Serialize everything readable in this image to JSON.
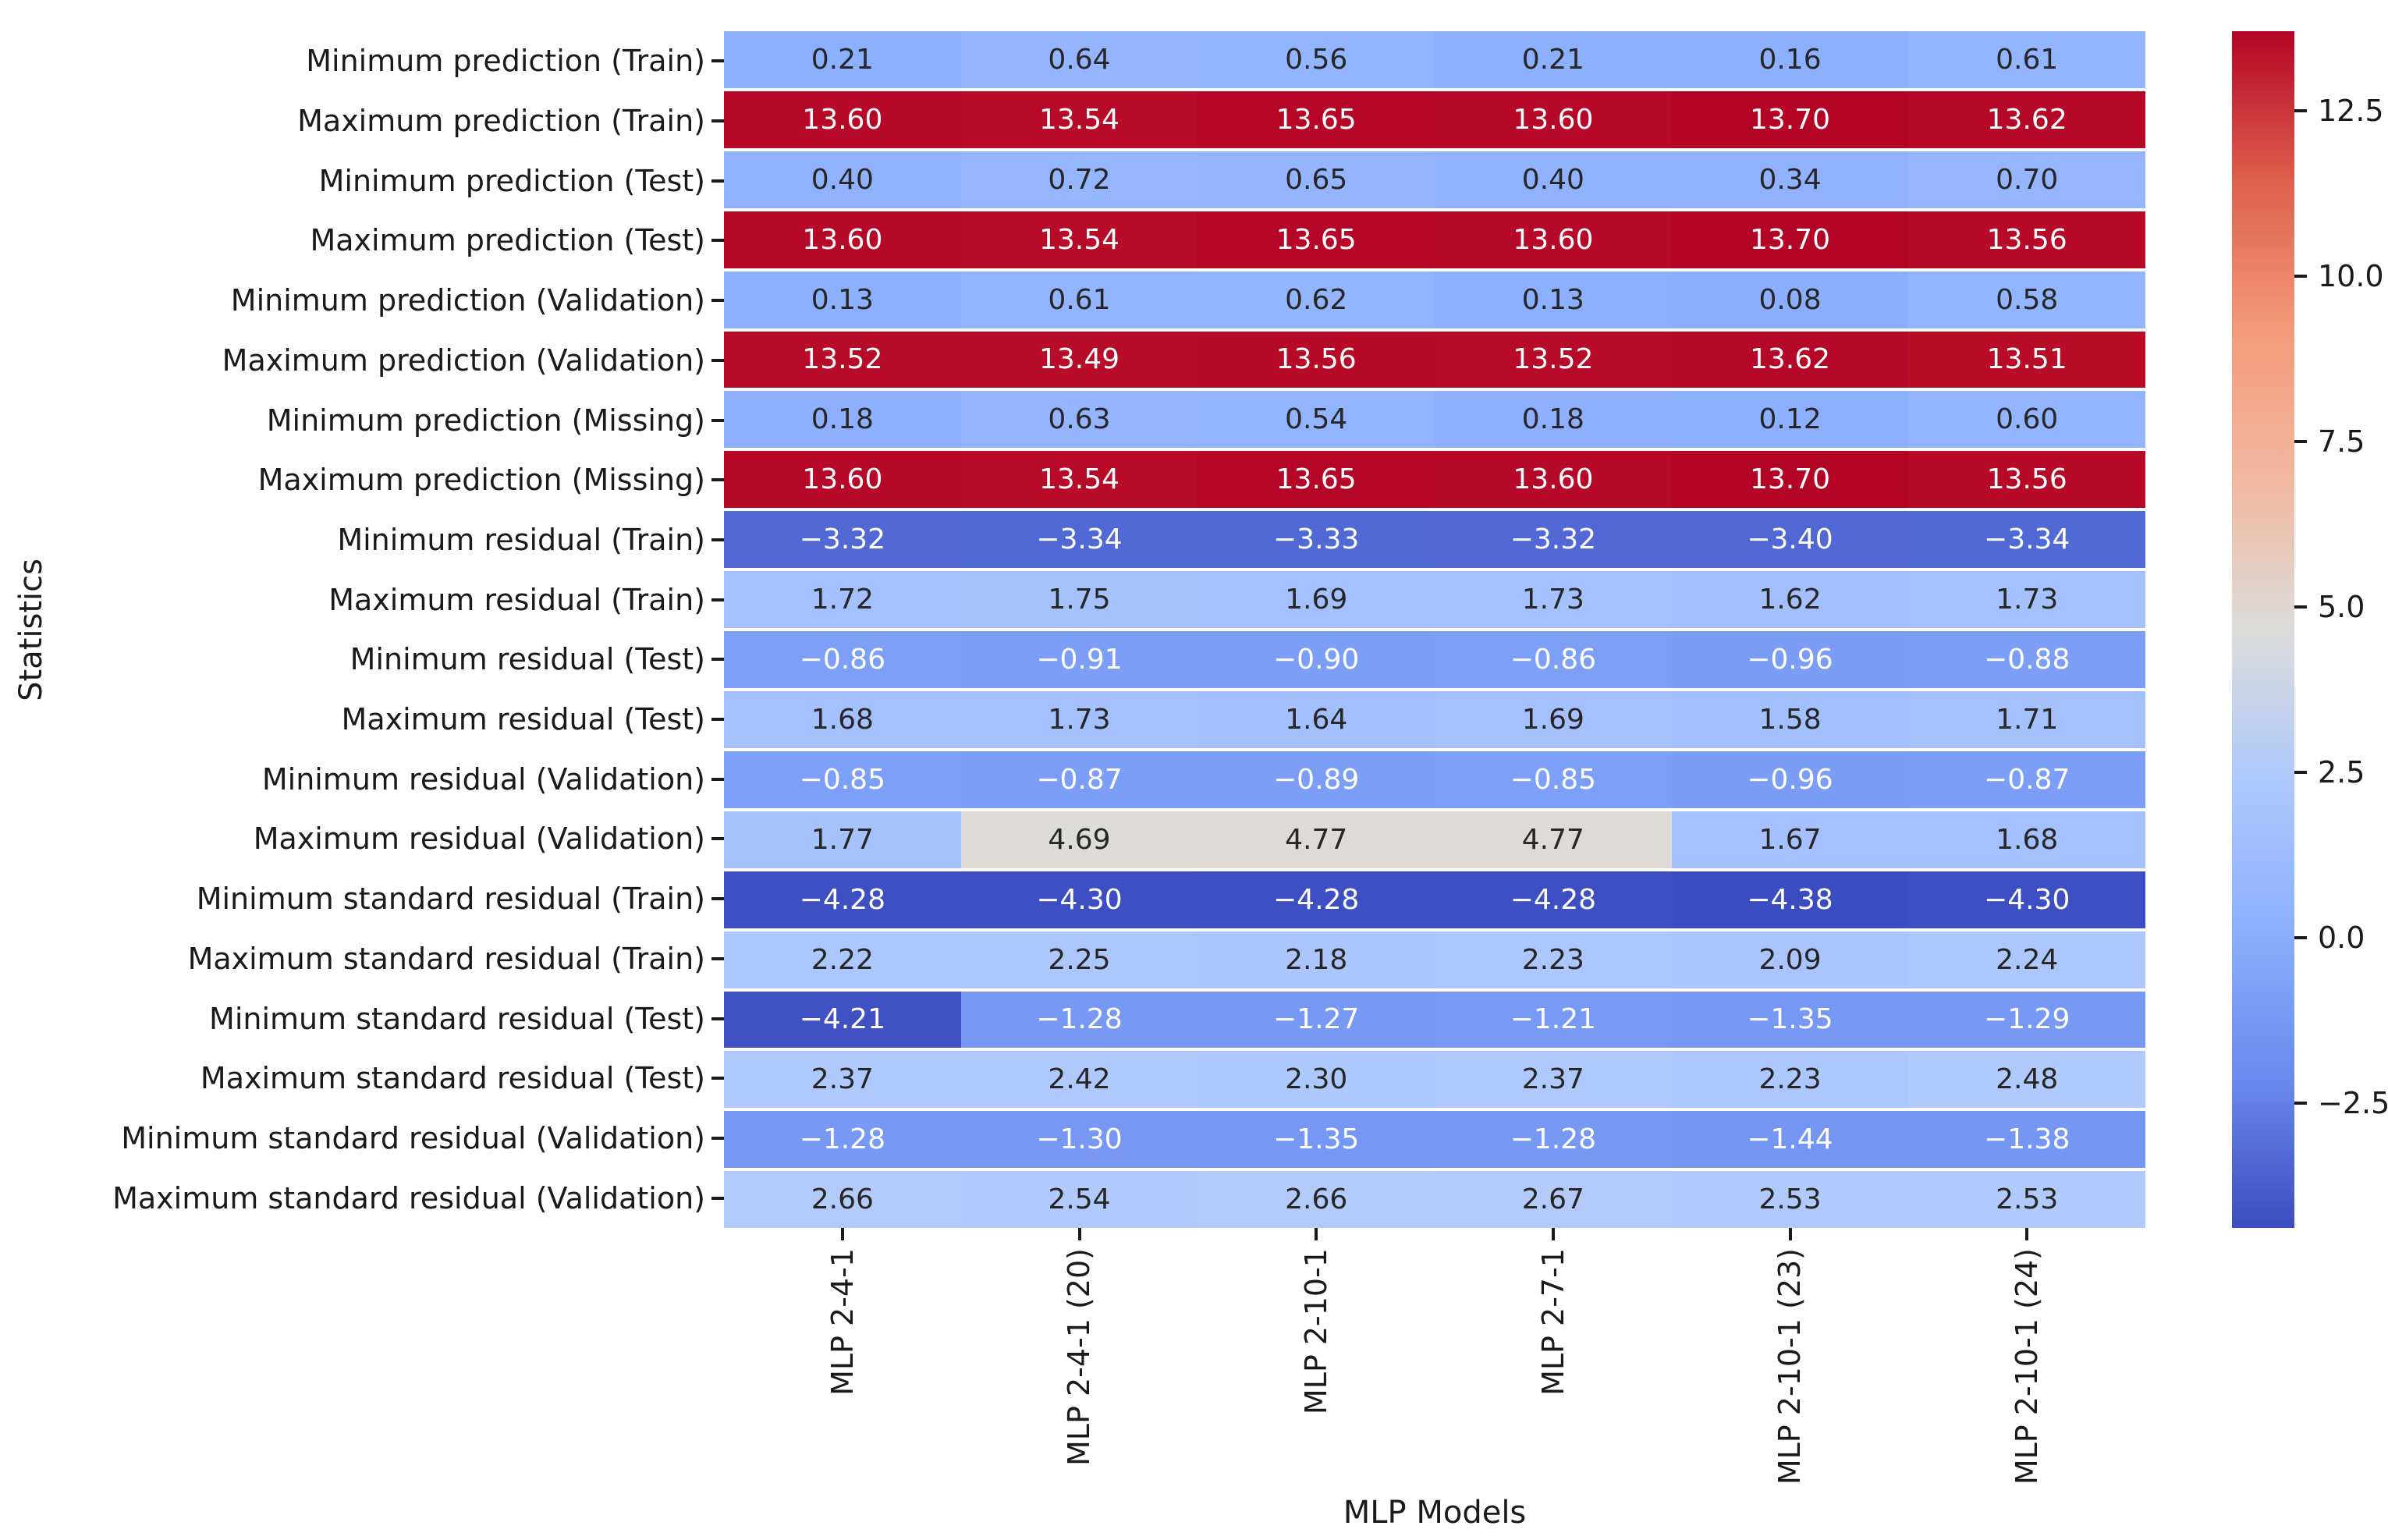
{
  "chart_data": {
    "type": "heatmap",
    "title": "",
    "xlabel": "MLP Models",
    "ylabel": "Statistics",
    "colormap": "coolwarm",
    "vmin": -4.38,
    "vmax": 13.7,
    "grid": false,
    "legend_position": "right-colorbar",
    "annotation_format": ".2f",
    "columns": [
      "MLP 2-4-1",
      "MLP 2-4-1 (20)",
      "MLP 2-10-1",
      "MLP 2-7-1",
      "MLP 2-10-1 (23)",
      "MLP 2-10-1 (24)"
    ],
    "rows": [
      "Minimum prediction (Train)",
      "Maximum prediction (Train)",
      "Minimum prediction (Test)",
      "Maximum prediction (Test)",
      "Minimum prediction (Validation)",
      "Maximum prediction (Validation)",
      "Minimum prediction (Missing)",
      "Maximum prediction (Missing)",
      "Minimum residual (Train)",
      "Maximum residual (Train)",
      "Minimum residual (Test)",
      "Maximum residual (Test)",
      "Minimum residual (Validation)",
      "Maximum residual (Validation)",
      "Minimum standard residual (Train)",
      "Maximum standard residual (Train)",
      "Minimum standard residual (Test)",
      "Maximum standard residual (Test)",
      "Minimum standard residual (Validation)",
      "Maximum standard residual (Validation)"
    ],
    "values": [
      [
        0.21,
        0.64,
        0.56,
        0.21,
        0.16,
        0.61
      ],
      [
        13.6,
        13.54,
        13.65,
        13.6,
        13.7,
        13.62
      ],
      [
        0.4,
        0.72,
        0.65,
        0.4,
        0.34,
        0.7
      ],
      [
        13.6,
        13.54,
        13.65,
        13.6,
        13.7,
        13.56
      ],
      [
        0.13,
        0.61,
        0.62,
        0.13,
        0.08,
        0.58
      ],
      [
        13.52,
        13.49,
        13.56,
        13.52,
        13.62,
        13.51
      ],
      [
        0.18,
        0.63,
        0.54,
        0.18,
        0.12,
        0.6
      ],
      [
        13.6,
        13.54,
        13.65,
        13.6,
        13.7,
        13.56
      ],
      [
        -3.32,
        -3.34,
        -3.33,
        -3.32,
        -3.4,
        -3.34
      ],
      [
        1.72,
        1.75,
        1.69,
        1.73,
        1.62,
        1.73
      ],
      [
        -0.86,
        -0.91,
        -0.9,
        -0.86,
        -0.96,
        -0.88
      ],
      [
        1.68,
        1.73,
        1.64,
        1.69,
        1.58,
        1.71
      ],
      [
        -0.85,
        -0.87,
        -0.89,
        -0.85,
        -0.96,
        -0.87
      ],
      [
        1.77,
        4.69,
        4.77,
        4.77,
        1.67,
        1.68
      ],
      [
        -4.28,
        -4.3,
        -4.28,
        -4.28,
        -4.38,
        -4.3
      ],
      [
        2.22,
        2.25,
        2.18,
        2.23,
        2.09,
        2.24
      ],
      [
        -4.21,
        -1.28,
        -1.27,
        -1.21,
        -1.35,
        -1.29
      ],
      [
        2.37,
        2.42,
        2.3,
        2.37,
        2.23,
        2.48
      ],
      [
        -1.28,
        -1.3,
        -1.35,
        -1.28,
        -1.44,
        -1.38
      ],
      [
        2.66,
        2.54,
        2.66,
        2.67,
        2.53,
        2.53
      ]
    ],
    "colorbar_ticks": [
      12.5,
      10.0,
      7.5,
      5.0,
      2.5,
      0.0,
      -2.5
    ]
  },
  "colors": {
    "annotation_dark": "#262626",
    "annotation_light": "#ffffff",
    "label_color": "#1a1a1a",
    "tick_color": "#1a1a1a",
    "background": "#ffffff",
    "coolwarm_min": "#3b4cc0",
    "coolwarm_mid": "#dddcda",
    "coolwarm_max": "#b40426"
  }
}
